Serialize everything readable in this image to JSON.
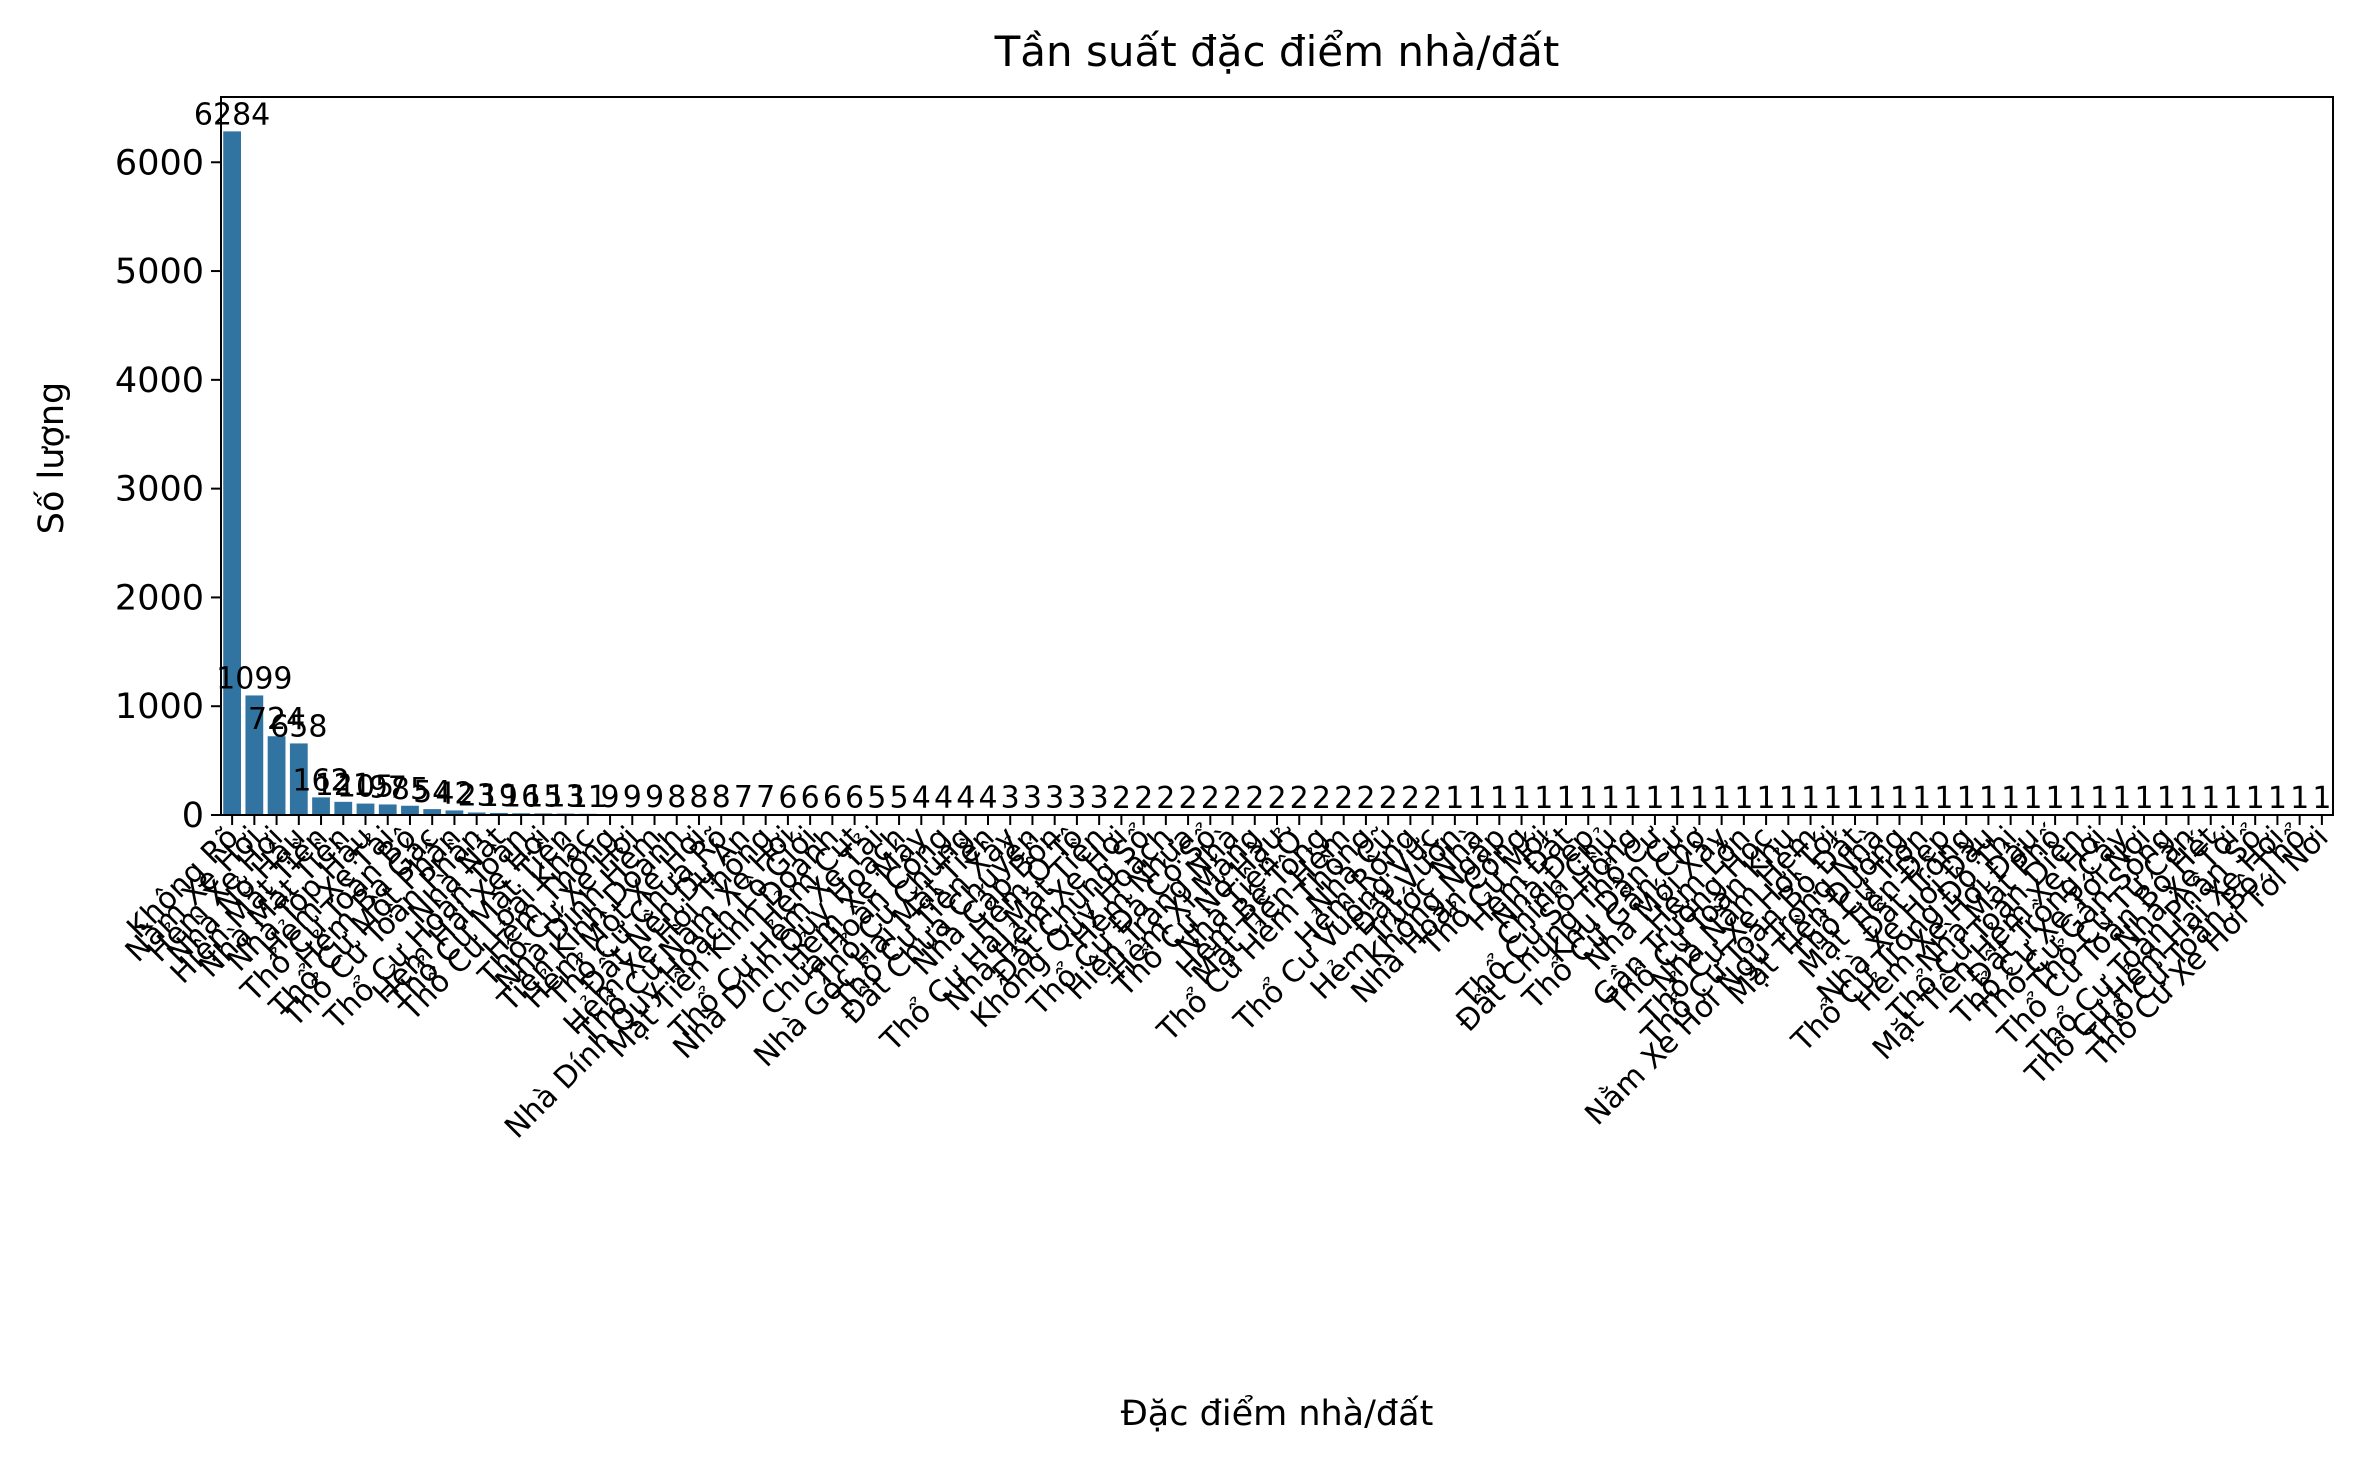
{
  "chart_data": {
    "type": "bar",
    "title": "Tần suất đặc điểm nhà/đất",
    "xlabel": "Đặc điểm nhà/đất",
    "ylabel": "Số lượng",
    "ylim": [
      0,
      6600
    ],
    "yticks": [
      0,
      1000,
      2000,
      3000,
      4000,
      5000,
      6000
    ],
    "grid": false,
    "legend": "none",
    "bar_color": "#3274a1",
    "categories": [
      "Không Rõ",
      "Nằm Xe Hơi",
      "Hẻm Xe Hơi",
      "Nhà Nở Hậu",
      "Hiện Mặt Tiền",
      "Nhà Mặt Tiền",
      "Nhà Tóp Hậu",
      "Hẻm Xe Tải",
      "Thổ Cư Toàn Bộ",
      "Hẻm Ba Gác",
      "Thổ Cư Một Phần",
      "Thổ Cư Toàn Phần",
      "Nhà Nát",
      "Thổ Cư Hoàn Toàn",
      "Hẻm Hai Xe Hơi",
      "Thổ Cư Mặt Tiền",
      "Thổ Cư Loại Khác",
      "Hẻm Thông",
      "Thổ Cư Xe Hơi",
      "Nhà Dính Hẻm",
      "Tiện Kinh Doanh",
      "Hẻm Một Xe Hơi",
      "Thổ Cư Chưa Rõ",
      "Đất Nền Dự Án",
      "Hẻm Xe Hơi Thông",
      "Thổ Cư Nằm Xe Hơi",
      "Nhà Dính Quy Hoạch Lộ Giới",
      "Mặt Tiền Kinh Doanh",
      "Hẻm Cụt",
      "Thổ Cư Hẻm Xe Tải",
      "Nhà Dính Quy Hoạch",
      "Hẻm Xe Máy",
      "Chưa Hoàn Công",
      "Thổ Cư Chung",
      "Nhà Góc Hai Mặt Tiền",
      "Thổ Cư Tiện Xây",
      "Đất Chưa Chuyển",
      "Nhà Cấp Bốn",
      "Hẻm Ô Tô",
      "Thổ Cư Hai Mặt Tiền",
      "Nhà Hẻm Xe Hơi",
      "Đất Chung Sổ",
      "Không Quy Hoạch",
      "Hẻm Nhựa",
      "Thổ Cư Đã Có Sổ",
      "Hiện Trạng Nhà",
      "Hẻm Xi Măng",
      "Thổ Cư Nở Hậu",
      "Nhà Tiện Ở",
      "Hẻm Bê Tông",
      "Mặt Tiền Hẻm",
      "Thổ Cư Hẻm Thông",
      "Nhà Cũ",
      "Hẻm Rộng",
      "Thổ Cư Vuông Vức",
      "Đất Vườn",
      "Hẻm Trước Nhà",
      "Không Ngập",
      "Nhà Hoàn Công",
      "Thổ Cư Mới",
      "Hẻm Đất",
      "Nhà Đẹp",
      "Chính Chủ",
      "Thổ Cư Sổ Hồng",
      "Đất Chung Thổ Cư",
      "Khu Dân Cư",
      "Thổ Cư Gần Chợ",
      "Nhà Mới Xây",
      "Hẻm Lớn",
      "Gần Trường Học",
      "Thổ Cư Toàn Khu",
      "Nhà Nằm Hẻm",
      "Thổ Cư Xe Hơi Tới",
      "Thổ Cư Toàn Bộ Đất",
      "Nằm Xe Hơi Ngủ Trong Nhà",
      "Mặt Tiền Đường",
      "Thổ Cư Trọn",
      "Mặt Tiền Đẹp",
      "Đất Trống",
      "Nhà Xe Hơi Đậu",
      "Thổ Cư Trong Đô Thị",
      "Hẻm Xe Hơi Đậu",
      "Nhà Mặt Phố",
      "Thổ Cư Toàn Diện",
      "Mặt Tiền Hẻm Xe Hơi",
      "Đất Trồng Cây",
      "Thổ Cư Xe Tới Nơi",
      "Thổ Cư Gần Sông",
      "Thổ Cư Tứ Cận",
      "Thổ Cư Toàn Bộ Hết",
      "Nhà Xe Tới",
      "Thổ Cư Toàn Phần Sổ",
      "Thổ Cư Hẻm Hai Xe Hơi",
      "Thổ Cư Toàn Bộ Thổ",
      "Thổ Cư Xe Hơi Tới Nơi"
    ],
    "values": [
      6284,
      1099,
      724,
      658,
      162,
      121,
      105,
      97,
      85,
      54,
      42,
      23,
      19,
      16,
      15,
      13,
      11,
      9,
      9,
      9,
      8,
      8,
      8,
      7,
      7,
      6,
      6,
      6,
      6,
      5,
      5,
      4,
      4,
      4,
      4,
      3,
      3,
      3,
      3,
      3,
      2,
      2,
      2,
      2,
      2,
      2,
      2,
      2,
      2,
      2,
      2,
      2,
      2,
      2,
      2,
      1,
      1,
      1,
      1,
      1,
      1,
      1,
      1,
      1,
      1,
      1,
      1,
      1,
      1,
      1,
      1,
      1,
      1,
      1,
      1,
      1,
      1,
      1,
      1,
      1,
      1,
      1,
      1,
      1,
      1,
      1,
      1,
      1,
      1,
      1,
      1,
      1,
      1,
      1,
      1
    ]
  }
}
